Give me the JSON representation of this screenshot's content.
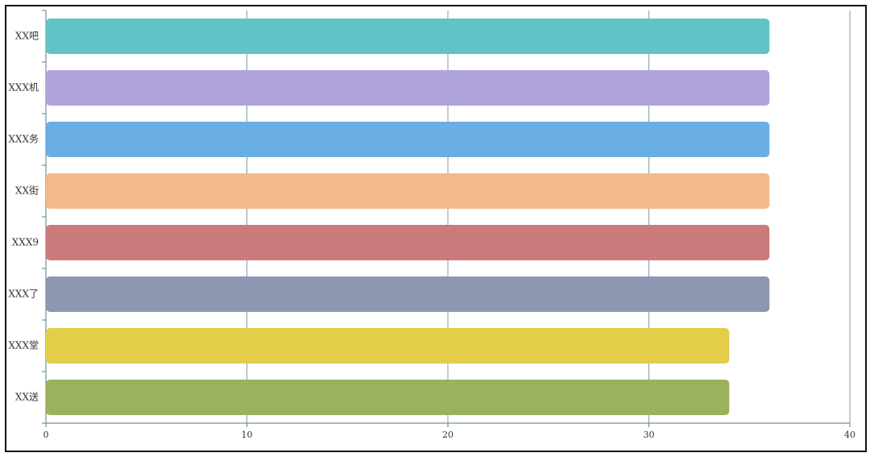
{
  "chart_data": {
    "type": "hbar",
    "categories": [
      "XX吧",
      "XXX机",
      "XXX务",
      "XX街",
      "XXX9",
      "XXX了",
      "XXX堂",
      "XX送"
    ],
    "values": [
      36,
      36,
      36,
      36,
      36,
      36,
      34,
      34
    ],
    "colors": [
      "#62c3c6",
      "#b1a3dc",
      "#6aaee6",
      "#f3b989",
      "#cc7b7c",
      "#8c98b2",
      "#e2ce48",
      "#9ab25c"
    ],
    "xlim": [
      0,
      40
    ],
    "xticks": [
      0,
      10,
      20,
      30,
      40
    ],
    "grid": true
  }
}
